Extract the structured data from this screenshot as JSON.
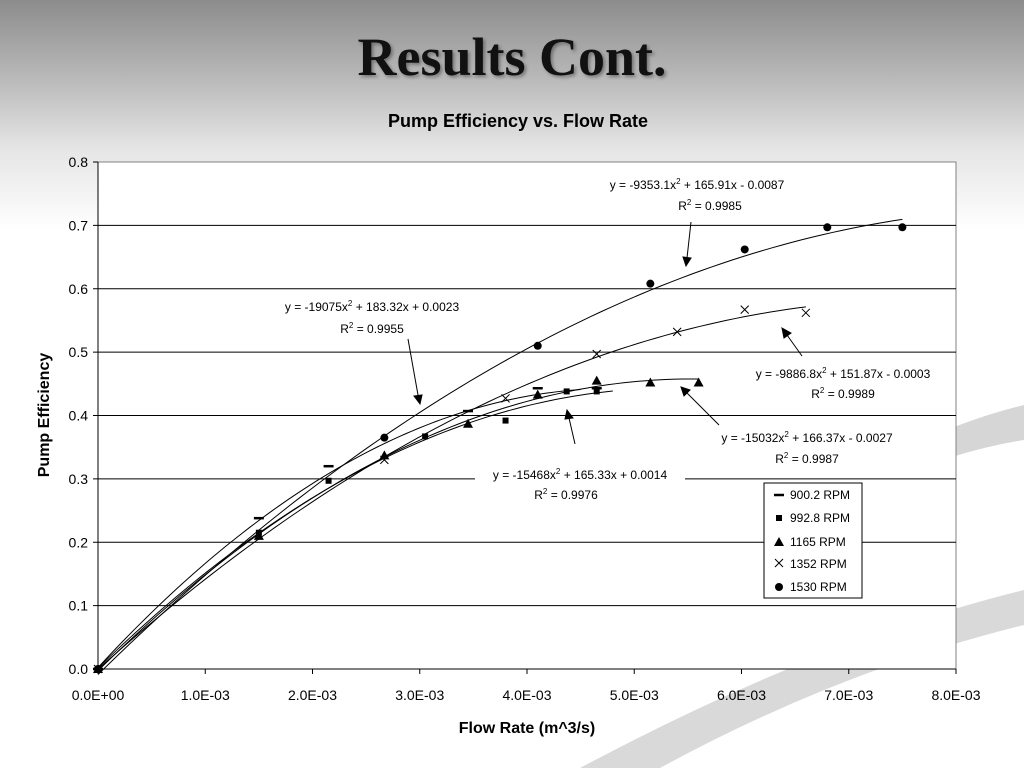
{
  "slide": {
    "title": "Results Cont."
  },
  "chart_data": {
    "type": "scatter",
    "title": "Pump Efficiency vs. Flow Rate",
    "xlabel": "Flow Rate (m^3/s)",
    "ylabel": "Pump Efficiency",
    "xlim": [
      0,
      0.008
    ],
    "ylim": [
      0,
      0.8
    ],
    "x_ticks": [
      "0.0E+00",
      "1.0E-03",
      "2.0E-03",
      "3.0E-03",
      "4.0E-03",
      "5.0E-03",
      "6.0E-03",
      "7.0E-03",
      "8.0E-03"
    ],
    "y_ticks": [
      "0.0",
      "0.1",
      "0.2",
      "0.3",
      "0.4",
      "0.5",
      "0.6",
      "0.7",
      "0.8"
    ],
    "grid": "horizontal",
    "legend_position": "bottom-right",
    "series": [
      {
        "name": "900.2 RPM",
        "marker": "dash",
        "points": [
          [
            0,
            0
          ],
          [
            0.0015,
            0.238
          ],
          [
            0.00215,
            0.32
          ],
          [
            0.00345,
            0.407
          ],
          [
            0.0041,
            0.443
          ],
          [
            0.00465,
            0.443
          ]
        ],
        "fit": {
          "a": -15468,
          "b": 165.33,
          "c": 0.0014,
          "xmax": 0.0048
        },
        "equation": [
          "y = -15468x",
          "2",
          " + 165.33x + 0.0014"
        ],
        "r2": "R",
        "r2_sup": "2",
        "r2_val": " = 0.9976"
      },
      {
        "name": "992.8 RPM",
        "marker": "square",
        "points": [
          [
            0,
            0
          ],
          [
            0.0015,
            0.215
          ],
          [
            0.00215,
            0.297
          ],
          [
            0.00305,
            0.367
          ],
          [
            0.0038,
            0.392
          ],
          [
            0.00437,
            0.438
          ],
          [
            0.00465,
            0.438
          ]
        ],
        "fit": {
          "a": -19075,
          "b": 183.32,
          "c": 0.0023,
          "xmax": 0.0045
        },
        "equation": [
          "y = -19075x",
          "2",
          " + 183.32x + 0.0023"
        ],
        "r2": "R",
        "r2_sup": "2",
        "r2_val": " = 0.9955"
      },
      {
        "name": "1165 RPM",
        "marker": "triangle",
        "points": [
          [
            0,
            0
          ],
          [
            0.0015,
            0.21
          ],
          [
            0.00267,
            0.337
          ],
          [
            0.00345,
            0.387
          ],
          [
            0.0041,
            0.433
          ],
          [
            0.00465,
            0.455
          ],
          [
            0.00515,
            0.452
          ],
          [
            0.0056,
            0.452
          ]
        ],
        "fit": {
          "a": -15032,
          "b": 166.37,
          "c": -0.0027,
          "xmax": 0.0056
        },
        "equation": [
          "y = -15032x",
          "2",
          " + 166.37x - 0.0027"
        ],
        "r2": "R",
        "r2_sup": "2",
        "r2_val": " = 0.9987"
      },
      {
        "name": "1352 RPM",
        "marker": "cross",
        "points": [
          [
            0,
            0
          ],
          [
            0.00267,
            0.33
          ],
          [
            0.0038,
            0.427
          ],
          [
            0.00465,
            0.497
          ],
          [
            0.0054,
            0.532
          ],
          [
            0.00603,
            0.567
          ],
          [
            0.0066,
            0.562
          ]
        ],
        "fit": {
          "a": -9886.8,
          "b": 151.87,
          "c": -0.0003,
          "xmax": 0.0066
        },
        "equation": [
          "y = -9886.8x",
          "2",
          " + 151.87x - 0.0003"
        ],
        "r2": "R",
        "r2_sup": "2",
        "r2_val": " = 0.9989"
      },
      {
        "name": "1530 RPM",
        "marker": "circle",
        "points": [
          [
            0,
            0
          ],
          [
            0.00267,
            0.365
          ],
          [
            0.0041,
            0.51
          ],
          [
            0.00515,
            0.608
          ],
          [
            0.00603,
            0.662
          ],
          [
            0.0068,
            0.697
          ],
          [
            0.0075,
            0.697
          ]
        ],
        "fit": {
          "a": -9353.1,
          "b": 165.91,
          "c": -0.0087,
          "xmax": 0.0075
        },
        "equation": [
          "y = -9353.1x",
          "2",
          " + 165.91x - 0.0087"
        ],
        "r2": "R",
        "r2_sup": "2",
        "r2_val": " = 0.9985"
      }
    ]
  }
}
